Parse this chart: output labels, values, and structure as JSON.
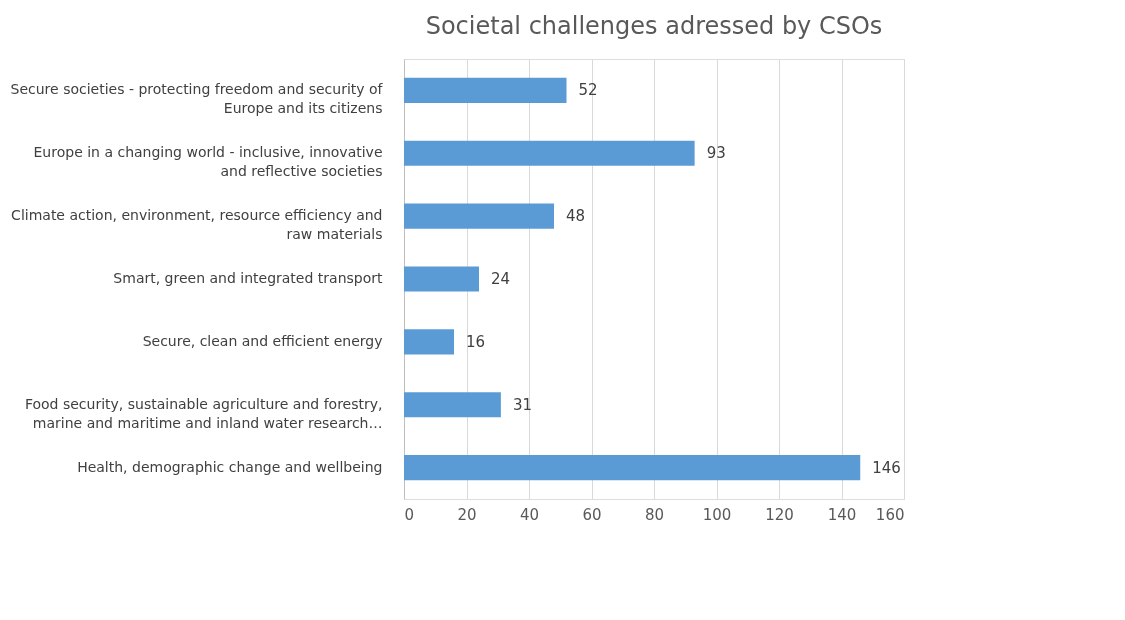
{
  "chart_data": {
    "type": "bar",
    "orientation": "horizontal",
    "title": "Societal challenges adressed by CSOs",
    "categories": [
      "Secure societies - protecting freedom and security of Europe and its citizens",
      "Europe in a changing world - inclusive, innovative and reflective societies",
      "Climate action, environment, resource efficiency and raw materials",
      "Smart, green and integrated transport",
      "Secure, clean and efficient energy",
      "Food security, sustainable agriculture and forestry, marine and maritime and inland water research…",
      "Health, demographic change and wellbeing"
    ],
    "values": [
      52,
      93,
      48,
      24,
      16,
      31,
      146
    ],
    "color": "#5b9bd5",
    "xlim": [
      0,
      160
    ],
    "xticks": [
      0,
      20,
      40,
      60,
      80,
      100,
      120,
      140,
      160
    ],
    "grid": "x",
    "data_labels": true
  }
}
